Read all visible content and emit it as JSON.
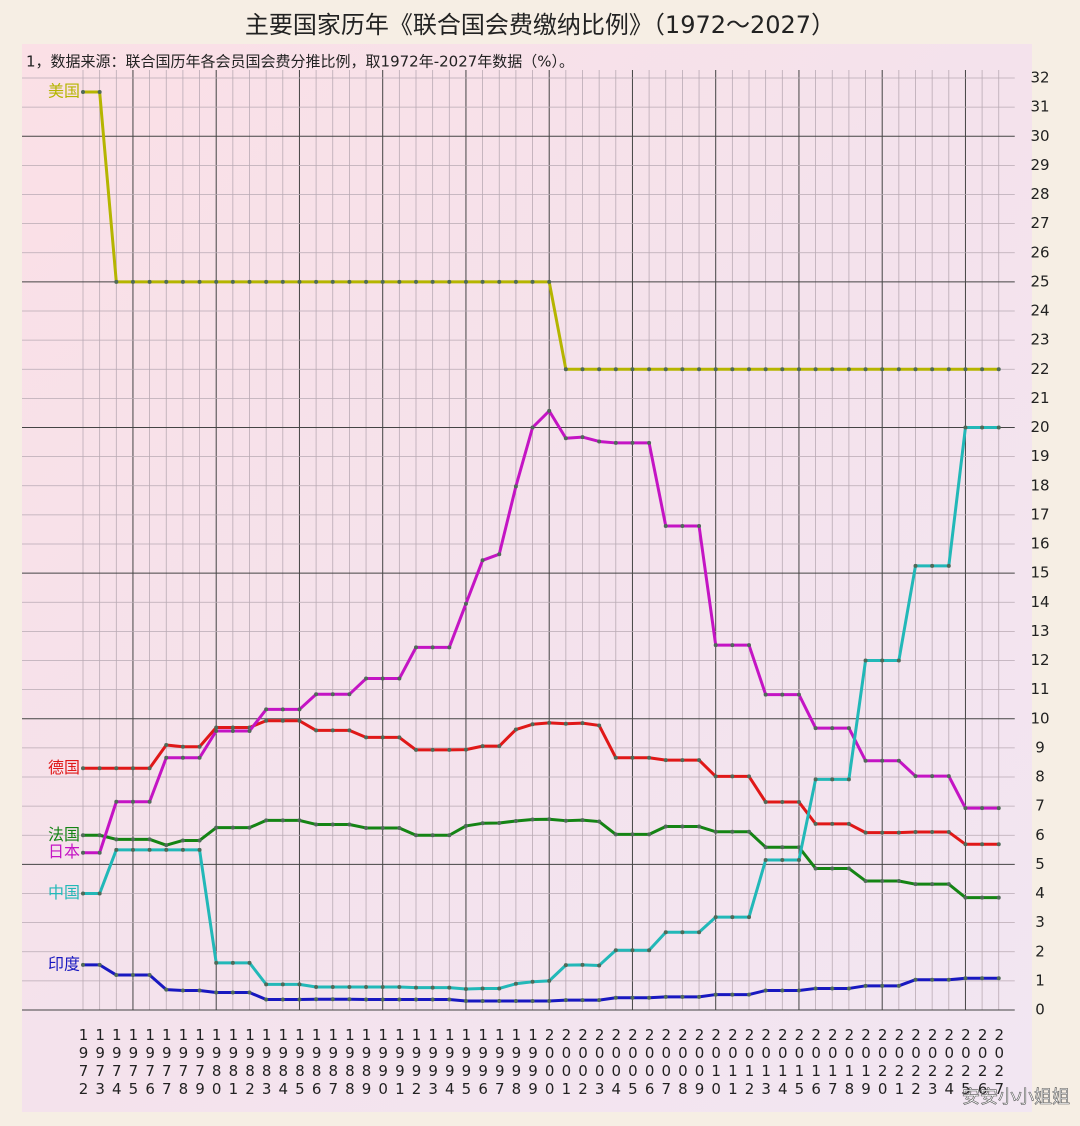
{
  "chart_data": {
    "type": "line",
    "title": "主要国家历年《联合国会费缴纳比例》（1972～2027）",
    "subtitle": "1，数据来源：联合国历年各会员国会费分推比例，取1972年-2027年数据（%）。",
    "watermark": "安安小小姐姐",
    "categories": [
      "1972",
      "1973",
      "1974",
      "1975",
      "1976",
      "1977",
      "1978",
      "1979",
      "1980",
      "1981",
      "1982",
      "1983",
      "1984",
      "1985",
      "1986",
      "1987",
      "1988",
      "1989",
      "1990",
      "1991",
      "1992",
      "1993",
      "1994",
      "1995",
      "1996",
      "1997",
      "1998",
      "1999",
      "2000",
      "2001",
      "2002",
      "2003",
      "2004",
      "2005",
      "2006",
      "2007",
      "2008",
      "2009",
      "2010",
      "2011",
      "2012",
      "2013",
      "2014",
      "2015",
      "2016",
      "2017",
      "2018",
      "2019",
      "2020",
      "2021",
      "2022",
      "2023",
      "2024",
      "2025",
      "2026",
      "2027"
    ],
    "ylim": [
      0,
      32
    ],
    "yticks": [
      0,
      1,
      2,
      3,
      4,
      5,
      6,
      7,
      8,
      9,
      10,
      11,
      12,
      13,
      14,
      15,
      16,
      17,
      18,
      19,
      20,
      21,
      22,
      23,
      24,
      25,
      26,
      27,
      28,
      29,
      30,
      31,
      32
    ],
    "grid": true,
    "series": [
      {
        "name": "美国",
        "color": "#b5b500",
        "values": [
          31.52,
          31.52,
          25,
          25,
          25,
          25,
          25,
          25,
          25,
          25,
          25,
          25,
          25,
          25,
          25,
          25,
          25,
          25,
          25,
          25,
          25,
          25,
          25,
          25,
          25,
          25,
          25,
          25,
          25,
          22,
          22,
          22,
          22,
          22,
          22,
          22,
          22,
          22,
          22,
          22,
          22,
          22,
          22,
          22,
          22,
          22,
          22,
          22,
          22,
          22,
          22,
          22,
          22,
          22,
          22,
          22
        ]
      },
      {
        "name": "德国",
        "color": "#e01818",
        "values": [
          8.3,
          8.3,
          8.3,
          8.3,
          8.3,
          9.1,
          9.04,
          9.04,
          9.7,
          9.7,
          9.7,
          9.93,
          9.93,
          9.93,
          9.6,
          9.6,
          9.6,
          9.36,
          9.36,
          9.36,
          8.93,
          8.93,
          8.93,
          8.94,
          9.06,
          9.06,
          9.63,
          9.81,
          9.86,
          9.83,
          9.85,
          9.77,
          8.66,
          8.66,
          8.66,
          8.58,
          8.58,
          8.58,
          8.02,
          8.02,
          8.02,
          7.14,
          7.14,
          7.14,
          6.39,
          6.39,
          6.39,
          6.09,
          6.09,
          6.09,
          6.11,
          6.11,
          6.11,
          5.69,
          5.69,
          5.69
        ]
      },
      {
        "name": "法国",
        "color": "#148414",
        "values": [
          6.0,
          6.0,
          5.86,
          5.86,
          5.86,
          5.66,
          5.82,
          5.82,
          6.26,
          6.26,
          6.26,
          6.51,
          6.51,
          6.51,
          6.37,
          6.37,
          6.37,
          6.25,
          6.25,
          6.25,
          6.0,
          6.0,
          6.0,
          6.32,
          6.41,
          6.42,
          6.49,
          6.54,
          6.55,
          6.5,
          6.52,
          6.47,
          6.03,
          6.03,
          6.03,
          6.3,
          6.3,
          6.3,
          6.12,
          6.12,
          6.12,
          5.59,
          5.59,
          5.59,
          4.86,
          4.86,
          4.86,
          4.43,
          4.43,
          4.43,
          4.32,
          4.32,
          4.32,
          3.86,
          3.86,
          3.86
        ]
      },
      {
        "name": "日本",
        "color": "#c414c4",
        "values": [
          5.4,
          5.4,
          7.15,
          7.15,
          7.15,
          8.66,
          8.66,
          8.66,
          9.58,
          9.58,
          9.58,
          10.32,
          10.32,
          10.32,
          10.84,
          10.84,
          10.84,
          11.38,
          11.38,
          11.38,
          12.45,
          12.45,
          12.45,
          13.95,
          15.44,
          15.65,
          17.98,
          20.0,
          20.57,
          19.63,
          19.67,
          19.52,
          19.47,
          19.47,
          19.47,
          16.62,
          16.62,
          16.62,
          12.53,
          12.53,
          12.53,
          10.83,
          10.83,
          10.83,
          9.68,
          9.68,
          9.68,
          8.56,
          8.56,
          8.56,
          8.03,
          8.03,
          8.03,
          6.93,
          6.93,
          6.93
        ]
      },
      {
        "name": "中国",
        "color": "#22b8b8",
        "values": [
          4.0,
          4.0,
          5.5,
          5.5,
          5.5,
          5.5,
          5.5,
          5.5,
          1.62,
          1.62,
          1.62,
          0.88,
          0.88,
          0.88,
          0.79,
          0.79,
          0.79,
          0.79,
          0.79,
          0.79,
          0.77,
          0.77,
          0.77,
          0.72,
          0.74,
          0.74,
          0.9,
          0.97,
          1.0,
          1.54,
          1.55,
          1.53,
          2.05,
          2.05,
          2.05,
          2.67,
          2.67,
          2.67,
          3.19,
          3.19,
          3.19,
          5.15,
          5.15,
          5.15,
          7.92,
          7.92,
          7.92,
          12.0,
          12.0,
          12.0,
          15.25,
          15.25,
          15.25,
          20.0,
          20.0,
          20.0
        ]
      },
      {
        "name": "印度",
        "color": "#1818c0",
        "values": [
          1.55,
          1.55,
          1.2,
          1.2,
          1.2,
          0.7,
          0.67,
          0.67,
          0.6,
          0.6,
          0.6,
          0.36,
          0.36,
          0.36,
          0.37,
          0.37,
          0.37,
          0.36,
          0.36,
          0.36,
          0.36,
          0.36,
          0.36,
          0.31,
          0.31,
          0.31,
          0.31,
          0.31,
          0.31,
          0.34,
          0.34,
          0.34,
          0.42,
          0.42,
          0.42,
          0.45,
          0.45,
          0.45,
          0.53,
          0.53,
          0.53,
          0.67,
          0.67,
          0.67,
          0.74,
          0.74,
          0.74,
          0.83,
          0.83,
          0.83,
          1.04,
          1.04,
          1.04,
          1.09,
          1.09,
          1.09
        ]
      }
    ]
  }
}
